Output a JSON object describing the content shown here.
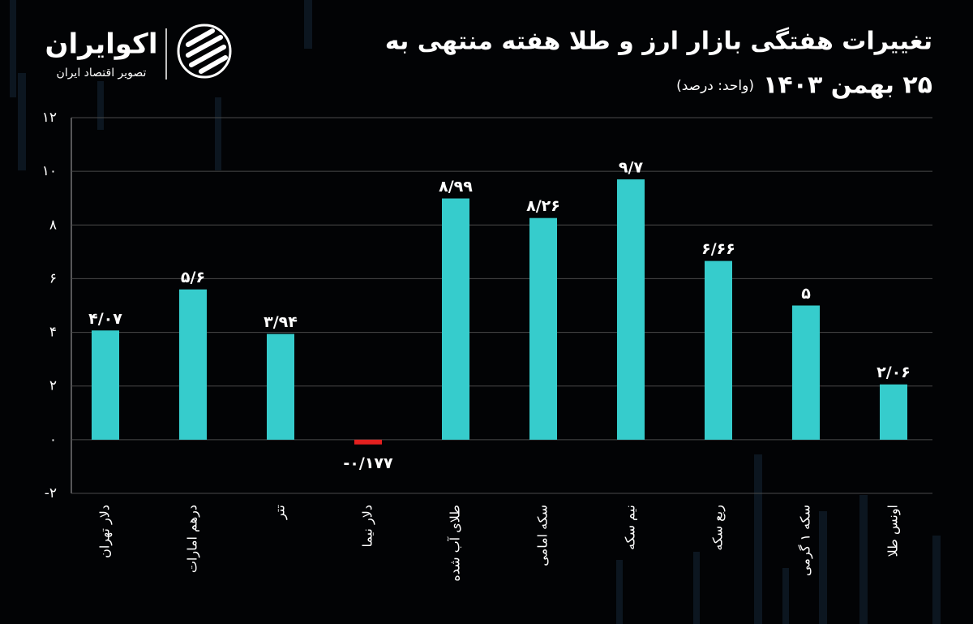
{
  "brand": {
    "name": "اکوایران",
    "tagline": "تصویر اقتصاد ایران"
  },
  "chart_data": {
    "type": "bar",
    "title": "تغییرات هفتگی بازار ارز و طلا هفته منتهی به",
    "subtitle": "۲۵ بهمن ۱۴۰۳",
    "unit_note": "(واحد: درصد)",
    "categories": [
      "دلار تهران",
      "درهم امارات",
      "تتر",
      "دلار نیما",
      "طلای آب شده",
      "سکه امامی",
      "نیم سکه",
      "ربع سکه",
      "سکه ۱ گرمی",
      "اونس طلا"
    ],
    "values": [
      4.07,
      5.6,
      3.94,
      -0.177,
      8.99,
      8.26,
      9.7,
      6.66,
      5,
      2.06
    ],
    "value_labels": [
      "۴/۰۷",
      "۵/۶",
      "۳/۹۴",
      "-۰/۱۷۷",
      "۸/۹۹",
      "۸/۲۶",
      "۹/۷",
      "۶/۶۶",
      "۵",
      "۲/۰۶"
    ],
    "colors": [
      "#36cccc",
      "#36cccc",
      "#36cccc",
      "#e3201f",
      "#36cccc",
      "#36cccc",
      "#36cccc",
      "#36cccc",
      "#36cccc",
      "#36cccc"
    ],
    "ylim": [
      -2,
      12
    ],
    "yticks": [
      {
        "value": -2,
        "label": "-۲"
      },
      {
        "value": 0,
        "label": "۰"
      },
      {
        "value": 2,
        "label": "۲"
      },
      {
        "value": 4,
        "label": "۴"
      },
      {
        "value": 6,
        "label": "۶"
      },
      {
        "value": 8,
        "label": "۸"
      },
      {
        "value": 10,
        "label": "۱۰"
      },
      {
        "value": 12,
        "label": "۱۲"
      }
    ],
    "grid": true
  }
}
